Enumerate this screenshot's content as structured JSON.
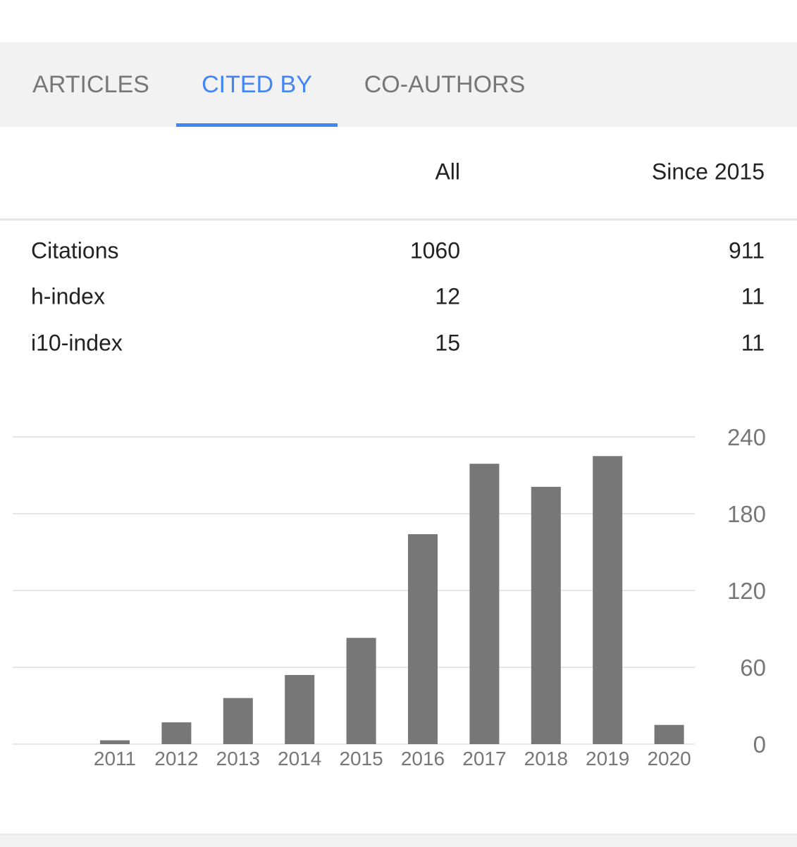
{
  "tabs": [
    {
      "label": "ARTICLES",
      "active": false
    },
    {
      "label": "CITED BY",
      "active": true
    },
    {
      "label": "CO-AUTHORS",
      "active": false
    }
  ],
  "colors": {
    "accent": "#4285f4",
    "bar": "#777777",
    "tab_bar_bg": "#f2f2f2"
  },
  "stats": {
    "header_all": "All",
    "header_since": "Since 2015",
    "rows": [
      {
        "label": "Citations",
        "all": "1060",
        "since": "911"
      },
      {
        "label": "h-index",
        "all": "12",
        "since": "11"
      },
      {
        "label": "i10-index",
        "all": "15",
        "since": "11"
      }
    ]
  },
  "chart_data": {
    "type": "bar",
    "categories": [
      "2011",
      "2012",
      "2013",
      "2014",
      "2015",
      "2016",
      "2017",
      "2018",
      "2019",
      "2020"
    ],
    "values": [
      3,
      17,
      36,
      54,
      83,
      164,
      219,
      201,
      225,
      15
    ],
    "ylim": [
      0,
      240
    ],
    "yticks": [
      0,
      60,
      120,
      180,
      240
    ],
    "grid": true,
    "y_axis_side": "right"
  }
}
